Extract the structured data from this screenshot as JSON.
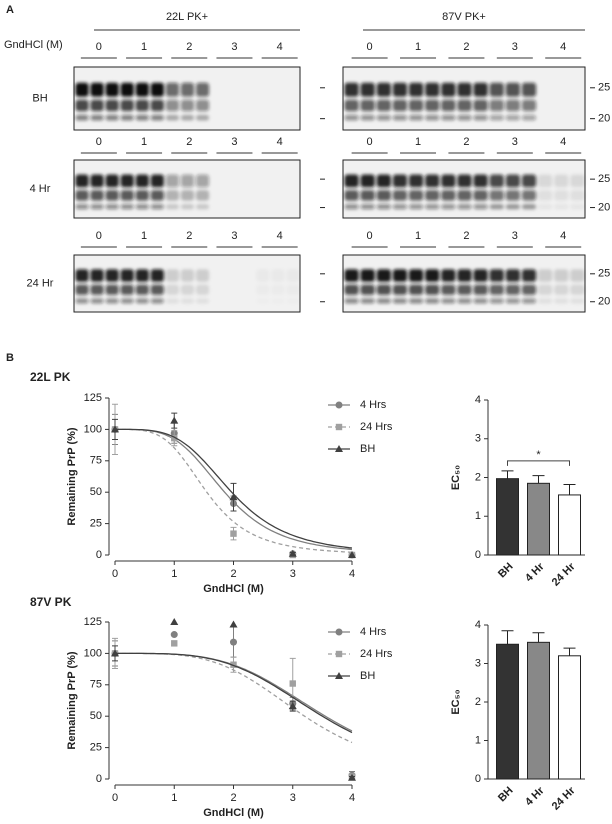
{
  "panel_labels": [
    "A",
    "B"
  ],
  "blots": {
    "groups": [
      "22L PK+",
      "87V PK+"
    ],
    "concentration_label": "GndHCl (M)",
    "concentrations": [
      "0",
      "1",
      "2",
      "3",
      "4"
    ],
    "rows": [
      "BH",
      "4 Hr",
      "24 Hr"
    ],
    "markers": [
      "25",
      "20"
    ]
  },
  "chart_data": [
    {
      "type": "line",
      "title": "22L PK",
      "xlabel": "GndHCl (M)",
      "ylabel": "Remaining PrP (%)",
      "x": [
        0,
        1,
        2,
        3,
        4
      ],
      "xlim": [
        0,
        4
      ],
      "xticks": [
        0,
        1,
        2,
        3,
        4
      ],
      "ylim": [
        0,
        125
      ],
      "yticks": [
        0,
        25,
        50,
        75,
        100,
        125
      ],
      "series": [
        {
          "name": "4 Hrs",
          "color": "#808080",
          "marker": "circle",
          "dashed": false,
          "values": [
            100,
            97,
            41,
            1,
            0
          ],
          "errors": [
            12,
            8,
            6,
            1,
            0
          ]
        },
        {
          "name": "24 Hrs",
          "color": "#a0a0a0",
          "marker": "square",
          "dashed": true,
          "values": [
            100,
            93,
            17,
            0,
            0
          ],
          "errors": [
            20,
            6,
            5,
            0,
            0
          ]
        },
        {
          "name": "BH",
          "color": "#404040",
          "marker": "triangle",
          "dashed": false,
          "values": [
            100,
            107,
            46,
            1,
            0
          ],
          "errors": [
            8,
            6,
            11,
            1,
            0
          ]
        }
      ]
    },
    {
      "type": "bar",
      "ylabel": "EC₅₀",
      "categories": [
        "BH",
        "4 Hr",
        "24 Hr"
      ],
      "values": [
        1.97,
        1.85,
        1.55
      ],
      "errors": [
        0.2,
        0.2,
        0.27
      ],
      "colors": [
        "#333333",
        "#888888",
        "#ffffff"
      ],
      "ylim": [
        0,
        4
      ],
      "yticks": [
        0,
        1,
        2,
        3,
        4
      ],
      "annotations": [
        "*"
      ]
    },
    {
      "type": "line",
      "title": "87V PK",
      "xlabel": "GndHCl (M)",
      "ylabel": "Remaining PrP (%)",
      "x": [
        0,
        1,
        2,
        3,
        4
      ],
      "xlim": [
        0,
        4
      ],
      "xticks": [
        0,
        1,
        2,
        3,
        4
      ],
      "ylim": [
        0,
        125
      ],
      "yticks": [
        0,
        25,
        50,
        75,
        100,
        125
      ],
      "series": [
        {
          "name": "4 Hrs",
          "color": "#808080",
          "marker": "circle",
          "dashed": false,
          "values": [
            100,
            115,
            109,
            60,
            3
          ],
          "errors": [
            10,
            0,
            12,
            5,
            3
          ]
        },
        {
          "name": "24 Hrs",
          "color": "#a0a0a0",
          "marker": "square",
          "dashed": true,
          "values": [
            100,
            108,
            91,
            76,
            2
          ],
          "errors": [
            12,
            0,
            6,
            20,
            2
          ]
        },
        {
          "name": "BH",
          "color": "#404040",
          "marker": "triangle",
          "dashed": false,
          "values": [
            100,
            125,
            123,
            58,
            1
          ],
          "errors": [
            6,
            0,
            0,
            4,
            1
          ]
        }
      ]
    },
    {
      "type": "bar",
      "ylabel": "EC₅₀",
      "categories": [
        "BH",
        "4 Hr",
        "24 Hr"
      ],
      "values": [
        3.5,
        3.55,
        3.2
      ],
      "errors": [
        0.35,
        0.25,
        0.2
      ],
      "colors": [
        "#333333",
        "#888888",
        "#ffffff"
      ],
      "ylim": [
        0,
        4
      ],
      "yticks": [
        0,
        1,
        2,
        3,
        4
      ],
      "annotations": []
    }
  ]
}
